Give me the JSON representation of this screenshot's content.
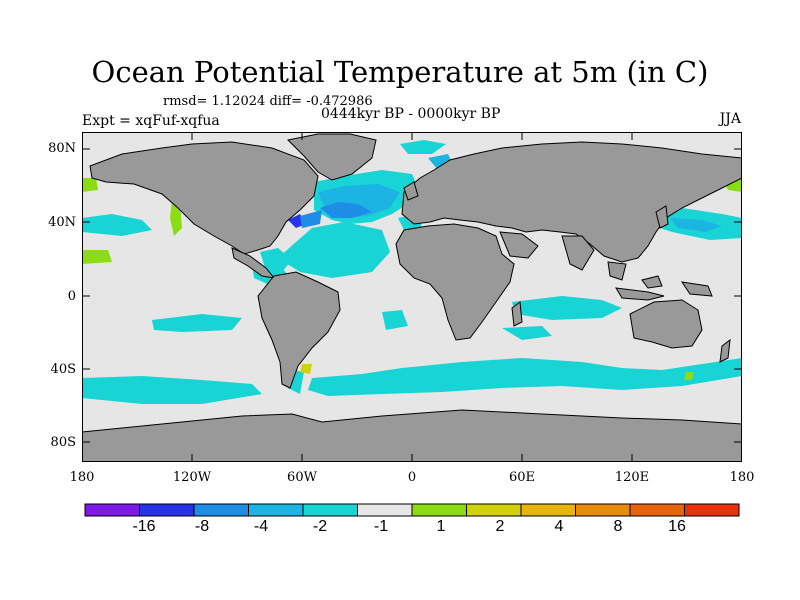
{
  "title": "Ocean Potential Temperature at 5m (in C)",
  "stats": "rmsd= 1.12024 diff= -0.472986",
  "experiment": "Expt = xqFuf-xqfua",
  "period": "0444kyr BP - 0000kyr BP",
  "season": "JJA",
  "colors": {
    "land": "#999999",
    "ocean_neutral": "#e6e6e6",
    "anomaly_minus1": "#19d4d4",
    "anomaly_minus2": "#1cb4e3",
    "anomaly_minus4": "#1e8de6",
    "anomaly_minus8": "#2832e6",
    "anomaly_minus16": "#7d1ae6",
    "anomaly_plus1": "#8cdc14",
    "anomaly_plus2": "#d2d20a"
  },
  "axes": {
    "lat_ticks": [
      "80N",
      "40N",
      "0",
      "40S",
      "80S"
    ],
    "lon_ticks": [
      "180",
      "120W",
      "60W",
      "0",
      "60E",
      "120E",
      "180"
    ]
  },
  "colorbar": {
    "colors": [
      "#7d1ae6",
      "#2832e6",
      "#1e8de6",
      "#1cb4e3",
      "#19d4d4",
      "#e6e6e6",
      "#8cdc14",
      "#d2d20a",
      "#e6b40a",
      "#e68c0a",
      "#e6640a",
      "#e6320a"
    ],
    "labels": [
      "-16",
      "-8",
      "-4",
      "-2",
      "-1",
      "1",
      "2",
      "4",
      "8",
      "16"
    ]
  }
}
